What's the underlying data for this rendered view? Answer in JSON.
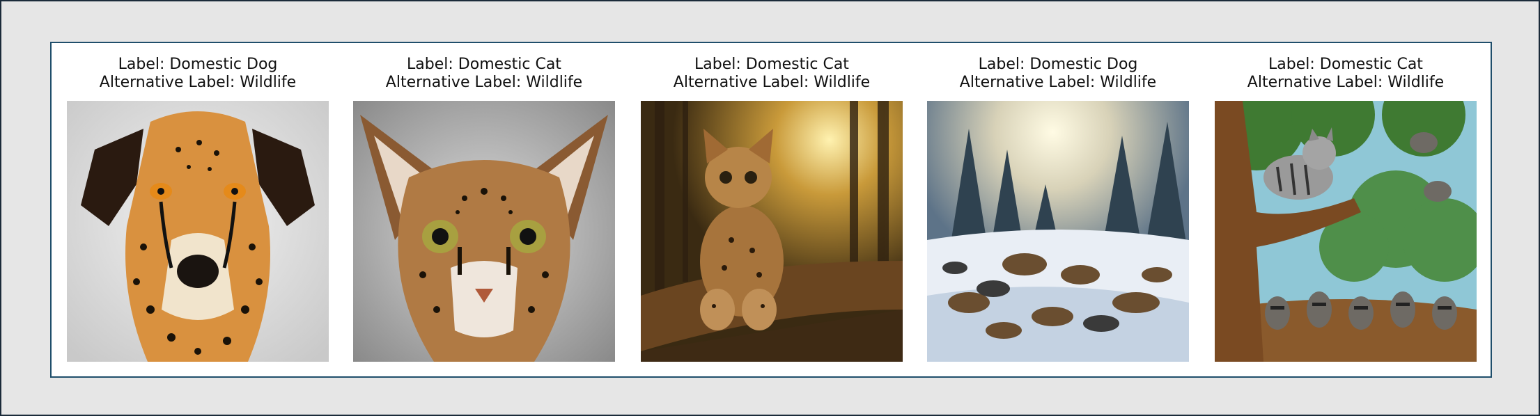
{
  "panels": [
    {
      "label": "Label: Domestic Dog",
      "alt_label": "Alternative Label: Wildlife",
      "image": "cheetah-spotted-dog-portrait"
    },
    {
      "label": "Label: Domestic Cat",
      "alt_label": "Alternative Label: Wildlife",
      "image": "ocelot-cat-face-portrait"
    },
    {
      "label": "Label: Domestic Cat",
      "alt_label": "Alternative Label: Wildlife",
      "image": "wildcat-on-branch-forest"
    },
    {
      "label": "Label: Domestic Dog",
      "alt_label": "Alternative Label: Wildlife",
      "image": "wolf-pack-in-snowy-forest"
    },
    {
      "label": "Label: Domestic Cat",
      "alt_label": "Alternative Label: Wildlife",
      "image": "cat-in-tree-with-raccoons"
    }
  ]
}
